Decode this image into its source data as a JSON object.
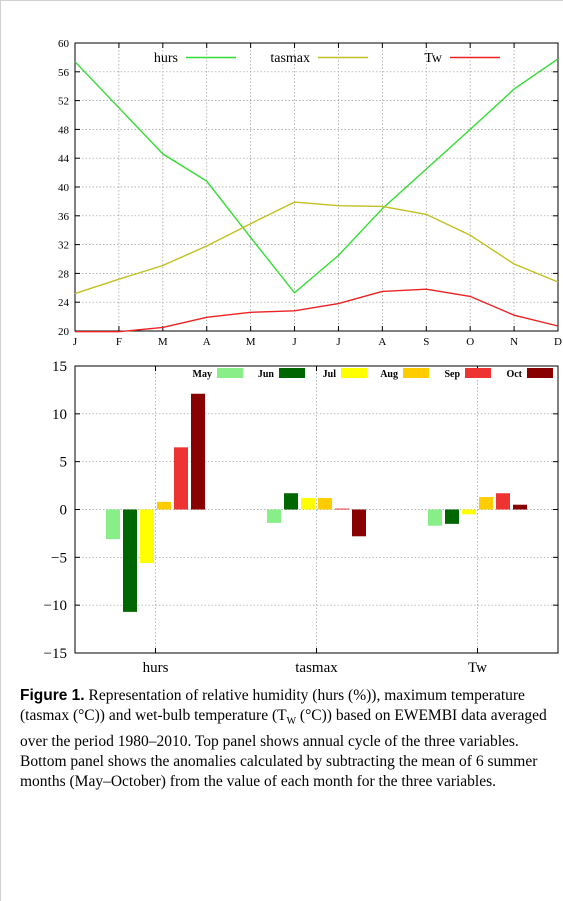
{
  "caption": {
    "label": "Figure 1.",
    "text": "Representation of relative humidity (hurs (%)), maximum temperature (tasmax (°C)) and wet-bulb temperature (T",
    "sub": "W",
    "text2": " (°C)) based on EWEMBI data averaged over the period 1980–2010. Top panel shows annual cycle of the three variables. Bottom panel shows the anomalies calculated by subtracting the mean of 6 summer months (May–October) from the value of each month for the three variables."
  },
  "chart_data": [
    {
      "type": "line",
      "categories": [
        "J",
        "F",
        "M",
        "A",
        "M",
        "J",
        "J",
        "A",
        "S",
        "O",
        "N",
        "D"
      ],
      "ylim": [
        20,
        60
      ],
      "yticks": [
        20,
        24,
        28,
        32,
        36,
        40,
        44,
        48,
        52,
        56,
        60
      ],
      "grid": true,
      "legend_position": "top",
      "series": [
        {
          "name": "hurs",
          "color": "#33dd33",
          "values": [
            57.4,
            51.0,
            44.6,
            40.8,
            33.0,
            25.3,
            30.5,
            37.0,
            42.5,
            48.0,
            53.6,
            57.8
          ]
        },
        {
          "name": "tasmax",
          "color": "#c0c020",
          "values": [
            25.2,
            27.2,
            29.1,
            31.8,
            34.9,
            37.9,
            37.4,
            37.3,
            36.2,
            33.3,
            29.3,
            26.8
          ]
        },
        {
          "name": "Tw",
          "color": "#ee2222",
          "values": [
            19.9,
            19.9,
            20.5,
            21.9,
            22.6,
            22.8,
            23.8,
            25.5,
            25.8,
            24.8,
            22.2,
            20.7
          ]
        }
      ]
    },
    {
      "type": "bar",
      "categories": [
        "hurs",
        "tasmax",
        "Tw"
      ],
      "ylim": [
        -15,
        15
      ],
      "yticks": [
        -15,
        -10,
        -5,
        0,
        5,
        10,
        15
      ],
      "ytick_labels": [
        "−15",
        "−10",
        "−5",
        "0",
        "5",
        "10",
        "15"
      ],
      "grid": true,
      "legend_position": "top-right",
      "series": [
        {
          "name": "May",
          "color": "#88ee88",
          "values": [
            -3.1,
            -1.4,
            -1.7
          ]
        },
        {
          "name": "Jun",
          "color": "#006600",
          "values": [
            -10.7,
            1.7,
            -1.5
          ]
        },
        {
          "name": "Jul",
          "color": "#ffff00",
          "values": [
            -5.6,
            1.2,
            -0.5
          ]
        },
        {
          "name": "Aug",
          "color": "#ffcc00",
          "values": [
            0.8,
            1.2,
            1.3
          ]
        },
        {
          "name": "Sep",
          "color": "#ee3333",
          "values": [
            6.5,
            0.1,
            1.7
          ]
        },
        {
          "name": "Oct",
          "color": "#880000",
          "values": [
            12.1,
            -2.8,
            0.5
          ]
        }
      ],
      "legend_labels": [
        "May",
        "Jun",
        "Jul",
        "Aug",
        "Sep",
        "Oct"
      ]
    }
  ]
}
